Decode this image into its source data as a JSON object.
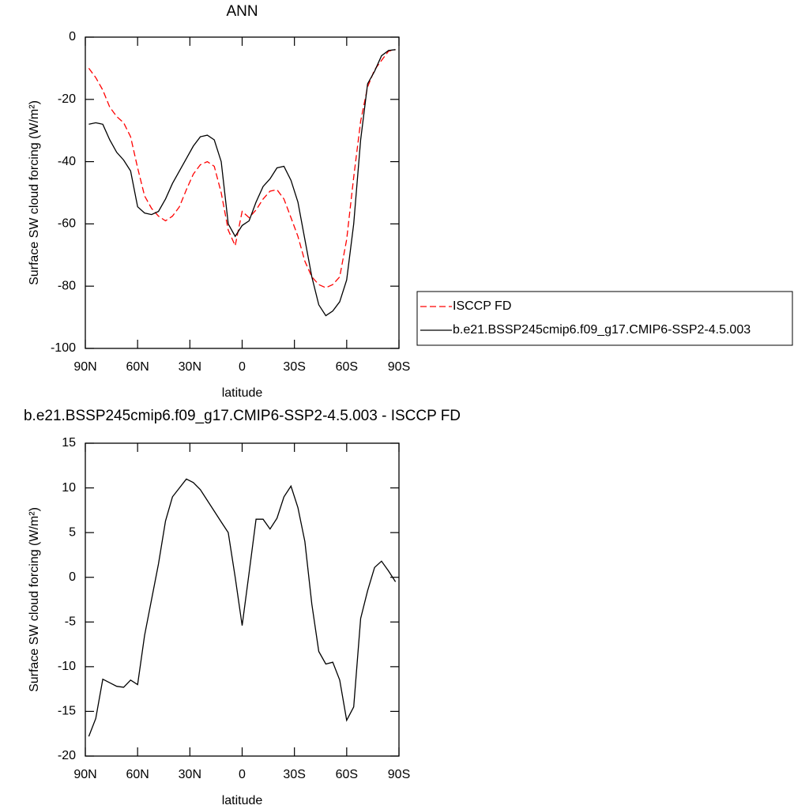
{
  "chart_data": [
    {
      "type": "line",
      "title": "ANN",
      "x_label": "latitude",
      "y_label": "Surface SW cloud forcing (W/m²)",
      "x": [
        88,
        84,
        80,
        76,
        72,
        68,
        64,
        60,
        56,
        52,
        48,
        44,
        40,
        36,
        32,
        28,
        24,
        20,
        16,
        12,
        8,
        4,
        0,
        -4,
        -8,
        -12,
        -16,
        -20,
        -24,
        -28,
        -32,
        -36,
        -40,
        -44,
        -48,
        -52,
        -56,
        -60,
        -64,
        -68,
        -72,
        -76,
        -80,
        -84,
        -88
      ],
      "series": [
        {
          "name": "ISCCP FD",
          "color": "#ff0000",
          "line_style": "dashed",
          "values": [
            -10,
            -13,
            -17,
            -22.5,
            -25.5,
            -27.5,
            -32,
            -42,
            -51,
            -55,
            -57.5,
            -59,
            -57.5,
            -54.5,
            -49,
            -44,
            -41,
            -40,
            -41.5,
            -50,
            -62,
            -67,
            -56,
            -58,
            -55.5,
            -52,
            -49.5,
            -49,
            -52,
            -58,
            -64,
            -72,
            -77,
            -79.5,
            -80.5,
            -79.5,
            -77,
            -65,
            -45,
            -27,
            -16,
            -10.5,
            -7.5,
            -4.5,
            -4
          ]
        },
        {
          "name": "b.e21.BSSP245cmip6.f09_g17.CMIP6-SSP2-4.5.003",
          "color": "#000000",
          "line_style": "solid",
          "values": [
            -28,
            -27.5,
            -28,
            -33,
            -37,
            -39.5,
            -43,
            -54.5,
            -56.5,
            -57,
            -56,
            -52,
            -47,
            -43,
            -39,
            -35,
            -32,
            -31.5,
            -33,
            -40,
            -60,
            -64,
            -60.5,
            -59,
            -53,
            -48,
            -45.5,
            -42,
            -41.5,
            -46,
            -53,
            -65,
            -77,
            -86,
            -89.5,
            -88,
            -85,
            -78,
            -60,
            -33,
            -15,
            -11,
            -6,
            -4.3,
            -4
          ]
        }
      ],
      "xlim": [
        90,
        -90
      ],
      "xticks": [
        {
          "value": 90,
          "label": "90N"
        },
        {
          "value": 60,
          "label": "60N"
        },
        {
          "value": 30,
          "label": "30N"
        },
        0,
        {
          "value": -30,
          "label": "30S"
        },
        {
          "value": -60,
          "label": "60S"
        },
        {
          "value": -90,
          "label": "90S"
        }
      ],
      "ylim": [
        -100,
        0
      ],
      "yticks": [
        0,
        -20,
        -40,
        -60,
        -80,
        -100
      ],
      "legend": "right"
    },
    {
      "type": "line",
      "title": "b.e21.BSSP245cmip6.f09_g17.CMIP6-SSP2-4.5.003 - ISCCP FD",
      "x_label": "latitude",
      "y_label": "Surface SW cloud forcing (W/m²)",
      "x": [
        88,
        84,
        80,
        76,
        72,
        68,
        64,
        60,
        56,
        52,
        48,
        44,
        40,
        36,
        32,
        28,
        24,
        20,
        16,
        12,
        8,
        4,
        0,
        -4,
        -8,
        -12,
        -16,
        -20,
        -24,
        -28,
        -32,
        -36,
        -40,
        -44,
        -48,
        -52,
        -56,
        -60,
        -64,
        -68,
        -72,
        -76,
        -80,
        -84,
        -88
      ],
      "color": "#000000",
      "values": [
        -17.8,
        -15.8,
        -11.4,
        -11.8,
        -12.2,
        -12.3,
        -11.5,
        -12,
        -6.5,
        -2.5,
        1.5,
        6.3,
        9,
        10,
        11,
        10.6,
        9.8,
        8.6,
        7.4,
        6.2,
        5,
        0,
        -5.4,
        0.5,
        6.5,
        6.5,
        5.4,
        6.6,
        9,
        10.2,
        7.8,
        4,
        -3,
        -8.3,
        -9.7,
        -9.5,
        -11.5,
        -16,
        -14.5,
        -4.6,
        -1.5,
        1.1,
        1.8,
        0.7,
        -0.5
      ],
      "xlim": [
        90,
        -90
      ],
      "xticks": [
        {
          "value": 90,
          "label": "90N"
        },
        {
          "value": 60,
          "label": "60N"
        },
        {
          "value": 30,
          "label": "30N"
        },
        0,
        {
          "value": -30,
          "label": "30S"
        },
        {
          "value": -60,
          "label": "60S"
        },
        {
          "value": -90,
          "label": "90S"
        }
      ],
      "ylim": [
        -20,
        15
      ],
      "yticks": [
        15,
        10,
        5,
        0,
        -5,
        -10,
        -15,
        -20
      ]
    }
  ]
}
